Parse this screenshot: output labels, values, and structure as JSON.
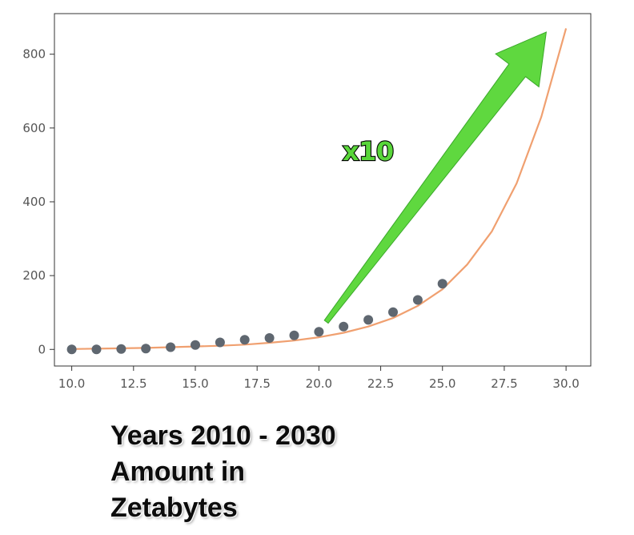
{
  "chart_data": {
    "type": "scatter",
    "title": "",
    "xlabel": "",
    "ylabel": "",
    "xlim": [
      9.3,
      31.0
    ],
    "ylim": [
      -45,
      910
    ],
    "x_ticks": [
      "10.0",
      "12.5",
      "15.0",
      "17.5",
      "20.0",
      "22.5",
      "25.0",
      "27.5",
      "30.0"
    ],
    "y_ticks": [
      "0",
      "200",
      "400",
      "600",
      "800"
    ],
    "grid": false,
    "series": [
      {
        "kind": "points",
        "color": "#5f6770",
        "x": [
          10,
          11,
          12,
          13,
          14,
          15,
          16,
          17,
          18,
          19,
          20,
          21,
          22,
          23,
          24,
          25
        ],
        "y": [
          0,
          0,
          1,
          2,
          6,
          12,
          19,
          26,
          31,
          38,
          48,
          62,
          80,
          101,
          134,
          178
        ]
      },
      {
        "kind": "line",
        "color": "#f0a070",
        "x": [
          10,
          11,
          12,
          13,
          14,
          15,
          16,
          17,
          18,
          19,
          20,
          21,
          22,
          23,
          24,
          25,
          26,
          27,
          28,
          29,
          30
        ],
        "y": [
          1,
          2,
          3,
          4,
          6,
          8,
          10,
          13,
          18,
          24,
          33,
          45,
          62,
          85,
          118,
          163,
          230,
          320,
          450,
          630,
          870
        ]
      }
    ],
    "annotations": [
      {
        "text": "x10",
        "color": "#59d63a",
        "arrow_from": [
          20.3,
          75
        ],
        "arrow_to": [
          29.2,
          860
        ]
      }
    ]
  },
  "caption": {
    "line1": "Years 2010 - 2030",
    "line2": "Amount in",
    "line3": "Zetabytes"
  }
}
